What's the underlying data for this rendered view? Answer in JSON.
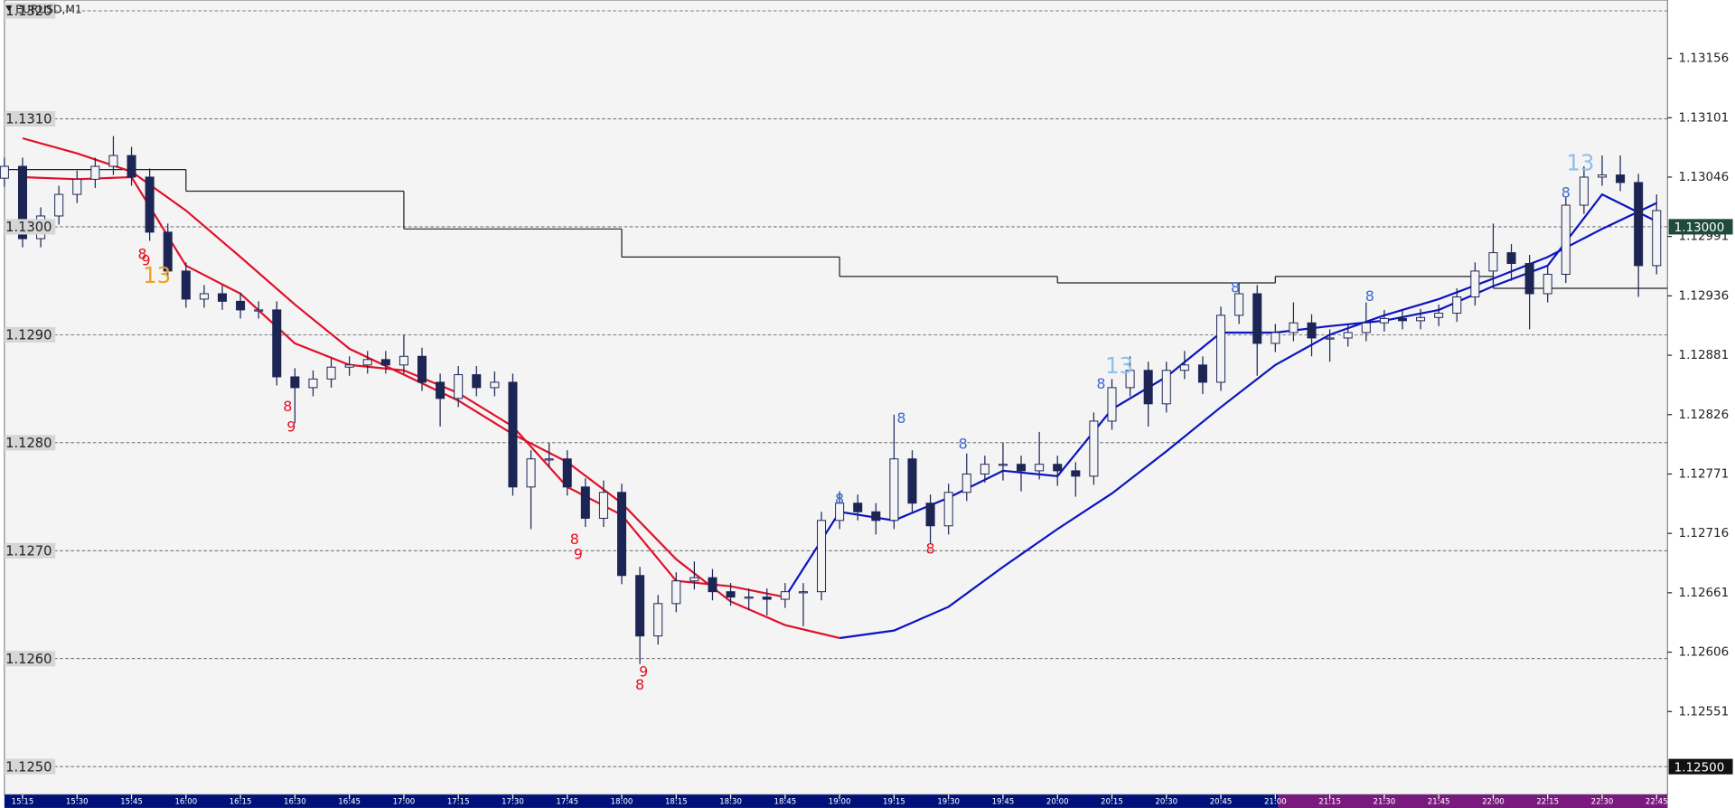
{
  "chart_data": {
    "type": "candlestick",
    "title": "EURUSD,M1",
    "candle_color": "#1c2554",
    "up_fill": "#f4f4f4",
    "grid": true,
    "xlim": [
      910,
      1368
    ],
    "ylim": [
      1.12474,
      1.1321
    ],
    "x": [
      910,
      915,
      920,
      925,
      930,
      935,
      940,
      945,
      950,
      955,
      960,
      965,
      970,
      975,
      980,
      985,
      990,
      995,
      1000,
      1005,
      1010,
      1015,
      1020,
      1025,
      1030,
      1035,
      1040,
      1045,
      1050,
      1055,
      1060,
      1065,
      1070,
      1075,
      1080,
      1085,
      1090,
      1095,
      1100,
      1105,
      1110,
      1115,
      1120,
      1125,
      1130,
      1135,
      1140,
      1145,
      1150,
      1155,
      1160,
      1165,
      1170,
      1175,
      1180,
      1185,
      1190,
      1195,
      1200,
      1205,
      1210,
      1215,
      1220,
      1225,
      1230,
      1235,
      1240,
      1245,
      1250,
      1255,
      1260,
      1265,
      1270,
      1275,
      1280,
      1285,
      1290,
      1295,
      1300,
      1305,
      1310,
      1315,
      1320,
      1325,
      1330,
      1335,
      1340,
      1345,
      1350,
      1355,
      1360,
      1365
    ],
    "open": [
      1.13045,
      1.13056,
      1.12989,
      1.1301,
      1.1303,
      1.13044,
      1.13056,
      1.13066,
      1.13046,
      1.12995,
      1.12959,
      1.12933,
      1.12938,
      1.12931,
      1.12923,
      1.12923,
      1.12861,
      1.12851,
      1.12859,
      1.1287,
      1.12872,
      1.12877,
      1.12872,
      1.1288,
      1.12856,
      1.12841,
      1.12863,
      1.12851,
      1.12856,
      1.12759,
      1.12785,
      1.12785,
      1.12759,
      1.1273,
      1.12754,
      1.12677,
      1.12621,
      1.12651,
      1.12672,
      1.12675,
      1.12662,
      1.12657,
      1.12657,
      1.12655,
      1.12662,
      1.12662,
      1.12728,
      1.12744,
      1.12736,
      1.12728,
      1.12785,
      1.12744,
      1.12723,
      1.12754,
      1.12771,
      1.1278,
      1.1278,
      1.12774,
      1.1278,
      1.12774,
      1.12769,
      1.1282,
      1.12851,
      1.12867,
      1.12836,
      1.12867,
      1.12872,
      1.12856,
      1.12918,
      1.12938,
      1.12892,
      1.12902,
      1.12911,
      1.12897,
      1.12897,
      1.12902,
      1.12911,
      1.12915,
      1.12913,
      1.12916,
      1.1292,
      1.12935,
      1.12959,
      1.12976,
      1.12966,
      1.12938,
      1.12956,
      1.1302,
      1.13046,
      1.13048,
      1.13041,
      1.12964
    ],
    "high": [
      1.13064,
      1.13064,
      1.13018,
      1.13038,
      1.13052,
      1.13064,
      1.13084,
      1.13074,
      1.13054,
      1.13003,
      1.12967,
      1.12946,
      1.12946,
      1.12939,
      1.12931,
      1.12931,
      1.12869,
      1.12867,
      1.12878,
      1.1288,
      1.12885,
      1.12885,
      1.129,
      1.12888,
      1.12864,
      1.12871,
      1.12871,
      1.12866,
      1.12864,
      1.12793,
      1.128,
      1.12793,
      1.12767,
      1.12765,
      1.12762,
      1.12685,
      1.12659,
      1.1268,
      1.1269,
      1.12683,
      1.1267,
      1.12665,
      1.12665,
      1.1267,
      1.1267,
      1.12736,
      1.12755,
      1.12752,
      1.12744,
      1.12826,
      1.12793,
      1.12752,
      1.12762,
      1.1279,
      1.12788,
      1.128,
      1.12788,
      1.1281,
      1.12788,
      1.12782,
      1.12828,
      1.12859,
      1.1288,
      1.12875,
      1.12875,
      1.12885,
      1.1288,
      1.12926,
      1.12948,
      1.12946,
      1.1291,
      1.1293,
      1.12919,
      1.12905,
      1.1291,
      1.1293,
      1.12923,
      1.12923,
      1.12924,
      1.12928,
      1.12943,
      1.12967,
      1.13003,
      1.12984,
      1.12974,
      1.12964,
      1.13028,
      1.13056,
      1.13066,
      1.13066,
      1.13049,
      1.1303
    ],
    "low": [
      1.13037,
      1.12981,
      1.12981,
      1.13002,
      1.13022,
      1.13036,
      1.13048,
      1.13038,
      1.12987,
      1.12951,
      1.12925,
      1.12925,
      1.12923,
      1.12915,
      1.12915,
      1.12853,
      1.12818,
      1.12843,
      1.12851,
      1.12862,
      1.12864,
      1.12864,
      1.12864,
      1.12848,
      1.12815,
      1.12833,
      1.12843,
      1.12843,
      1.12751,
      1.1272,
      1.12777,
      1.12751,
      1.12722,
      1.12722,
      1.12669,
      1.12595,
      1.12613,
      1.12643,
      1.12664,
      1.12654,
      1.12649,
      1.12645,
      1.1264,
      1.12647,
      1.1263,
      1.12654,
      1.1272,
      1.12728,
      1.12715,
      1.1272,
      1.12736,
      1.12706,
      1.12715,
      1.12746,
      1.12763,
      1.12765,
      1.12755,
      1.12766,
      1.1276,
      1.1275,
      1.12761,
      1.12812,
      1.12843,
      1.12815,
      1.12828,
      1.12859,
      1.12845,
      1.12848,
      1.1291,
      1.12862,
      1.12884,
      1.12894,
      1.1288,
      1.12875,
      1.12889,
      1.12894,
      1.12903,
      1.12905,
      1.12905,
      1.12908,
      1.12912,
      1.12927,
      1.12951,
      1.1295,
      1.12905,
      1.1293,
      1.12948,
      1.13012,
      1.13038,
      1.13033,
      1.12935,
      1.12956
    ],
    "close": [
      1.13056,
      1.12989,
      1.1301,
      1.1303,
      1.13044,
      1.13056,
      1.13066,
      1.13046,
      1.12995,
      1.12959,
      1.12933,
      1.12938,
      1.12931,
      1.12923,
      1.12923,
      1.12861,
      1.12851,
      1.12859,
      1.1287,
      1.12872,
      1.12877,
      1.12872,
      1.1288,
      1.12856,
      1.12841,
      1.12863,
      1.12851,
      1.12856,
      1.12759,
      1.12785,
      1.12785,
      1.12759,
      1.1273,
      1.12754,
      1.12677,
      1.12621,
      1.12651,
      1.12672,
      1.12675,
      1.12662,
      1.12657,
      1.12657,
      1.12655,
      1.12662,
      1.12662,
      1.12728,
      1.12744,
      1.12736,
      1.12728,
      1.12785,
      1.12744,
      1.12723,
      1.12754,
      1.12771,
      1.1278,
      1.1278,
      1.12774,
      1.1278,
      1.12774,
      1.12769,
      1.1282,
      1.12851,
      1.12867,
      1.12836,
      1.12867,
      1.12872,
      1.12856,
      1.12918,
      1.12938,
      1.12892,
      1.12902,
      1.12911,
      1.12897,
      1.12897,
      1.12902,
      1.12911,
      1.12915,
      1.12913,
      1.12916,
      1.1292,
      1.12935,
      1.12959,
      1.12976,
      1.12966,
      1.12938,
      1.12956,
      1.1302,
      1.13046,
      1.13048,
      1.13041,
      1.12964,
      1.13015
    ],
    "lines": [
      {
        "color": "#222222",
        "step": true,
        "x": [
          910,
          960,
          1020,
          1080,
          1140,
          1200,
          1260,
          1320
        ],
        "values": [
          1.13053,
          1.13033,
          1.12998,
          1.12972,
          1.12954,
          1.12948,
          1.12954,
          1.12943
        ]
      },
      {
        "color": "#e0102a",
        "x": [
          915,
          930,
          945,
          960,
          975,
          990,
          1005,
          1020,
          1035,
          1050,
          1065,
          1080,
          1095,
          1110,
          1125,
          1140
        ],
        "values": [
          1.13082,
          1.13068,
          1.13051,
          1.13015,
          1.12972,
          1.12928,
          1.12887,
          1.12863,
          1.12839,
          1.12808,
          1.12782,
          1.12744,
          1.12692,
          1.12653,
          1.12631,
          1.12619
        ]
      },
      {
        "color": "#0a14c0",
        "x": [
          1140,
          1155,
          1170,
          1185,
          1200,
          1215,
          1230,
          1245,
          1260,
          1275,
          1290,
          1305,
          1320,
          1335,
          1350,
          1365
        ],
        "values": [
          1.12619,
          1.12626,
          1.12648,
          1.12685,
          1.1272,
          1.12753,
          1.12792,
          1.12833,
          1.12872,
          1.129,
          1.12918,
          1.12933,
          1.12952,
          1.12972,
          1.12998,
          1.13022
        ]
      },
      {
        "color": "#e0102a",
        "x": [
          915,
          930,
          945,
          960,
          975,
          990,
          1005,
          1020,
          1035,
          1050,
          1065,
          1080,
          1095,
          1110,
          1125
        ],
        "values": [
          1.13046,
          1.13044,
          1.13046,
          1.12964,
          1.12938,
          1.12892,
          1.12872,
          1.12867,
          1.12846,
          1.12815,
          1.12759,
          1.12733,
          1.12672,
          1.12667,
          1.12657
        ]
      },
      {
        "color": "#0a14c0",
        "x": [
          1125,
          1140,
          1155,
          1170,
          1185,
          1200,
          1215,
          1230,
          1245,
          1260,
          1275,
          1290,
          1305,
          1320,
          1335,
          1350,
          1365
        ],
        "values": [
          1.12657,
          1.12736,
          1.12728,
          1.12749,
          1.12774,
          1.12769,
          1.12831,
          1.12861,
          1.12902,
          1.12902,
          1.12908,
          1.12913,
          1.12923,
          1.12945,
          1.12964,
          1.1303,
          1.13005
        ]
      }
    ],
    "annotations": [
      {
        "text": "8",
        "x": 948,
        "y": 1.12974,
        "color": "#e8101e"
      },
      {
        "text": "9",
        "x": 949,
        "y": 1.12968,
        "color": "#e8101e"
      },
      {
        "text": "13",
        "x": 952,
        "y": 1.12954,
        "color": "#f0a020"
      },
      {
        "text": "8",
        "x": 988,
        "y": 1.12833,
        "color": "#e8101e"
      },
      {
        "text": "9",
        "x": 989,
        "y": 1.12814,
        "color": "#e8101e"
      },
      {
        "text": "8",
        "x": 1067,
        "y": 1.1271,
        "color": "#e8101e"
      },
      {
        "text": "9",
        "x": 1068,
        "y": 1.12696,
        "color": "#e8101e"
      },
      {
        "text": "9",
        "x": 1086,
        "y": 1.12587,
        "color": "#e8101e"
      },
      {
        "text": "8",
        "x": 1085,
        "y": 1.12575,
        "color": "#e8101e"
      },
      {
        "text": "8",
        "x": 1165,
        "y": 1.12701,
        "color": "#e8101e"
      },
      {
        "text": "8",
        "x": 1140,
        "y": 1.12747,
        "color": "#3a6ad0"
      },
      {
        "text": "8",
        "x": 1157,
        "y": 1.12822,
        "color": "#3a6ad0"
      },
      {
        "text": "8",
        "x": 1174,
        "y": 1.12798,
        "color": "#3a6ad0"
      },
      {
        "text": "8",
        "x": 1212,
        "y": 1.12854,
        "color": "#3a6ad0"
      },
      {
        "text": "13",
        "x": 1217,
        "y": 1.1287,
        "color": "#8ec0ea"
      },
      {
        "text": "8",
        "x": 1249,
        "y": 1.12943,
        "color": "#3a6ad0"
      },
      {
        "text": "8",
        "x": 1286,
        "y": 1.12935,
        "color": "#3a6ad0"
      },
      {
        "text": "8",
        "x": 1340,
        "y": 1.13031,
        "color": "#3a6ad0"
      },
      {
        "text": "13",
        "x": 1344,
        "y": 1.13058,
        "color": "#8ec0ea"
      }
    ],
    "yticks": [
      {
        "value": 1.132,
        "label": "1.1320"
      },
      {
        "value": 1.131,
        "label": "1.1310"
      },
      {
        "value": 1.13,
        "label": "1.1300"
      },
      {
        "value": 1.129,
        "label": "1.1290"
      },
      {
        "value": 1.128,
        "label": "1.1280"
      },
      {
        "value": 1.127,
        "label": "1.1270"
      },
      {
        "value": 1.126,
        "label": "1.1260"
      },
      {
        "value": 1.125,
        "label": "1.1250"
      }
    ],
    "y2ticks": [
      1.13156,
      1.13101,
      1.13046,
      1.12991,
      1.12936,
      1.12881,
      1.12826,
      1.12771,
      1.12716,
      1.12661,
      1.12606,
      1.12551
    ],
    "price_labels": [
      {
        "value": 1.13,
        "label": "1.13000",
        "color": "#1f4a3c"
      },
      {
        "value": 1.125,
        "label": "1.12500",
        "color": "#111111"
      }
    ],
    "xticks": [
      {
        "value": 915,
        "label": "15:15"
      },
      {
        "value": 930,
        "label": "15:30"
      },
      {
        "value": 945,
        "label": "15:45"
      },
      {
        "value": 960,
        "label": "16:00"
      },
      {
        "value": 975,
        "label": "16:15"
      },
      {
        "value": 990,
        "label": "16:30"
      },
      {
        "value": 1005,
        "label": "16:45"
      },
      {
        "value": 1020,
        "label": "17:00"
      },
      {
        "value": 1035,
        "label": "17:15"
      },
      {
        "value": 1050,
        "label": "17:30"
      },
      {
        "value": 1065,
        "label": "17:45"
      },
      {
        "value": 1080,
        "label": "18:00"
      },
      {
        "value": 1095,
        "label": "18:15"
      },
      {
        "value": 1110,
        "label": "18:30"
      },
      {
        "value": 1125,
        "label": "18:45"
      },
      {
        "value": 1140,
        "label": "19:00"
      },
      {
        "value": 1155,
        "label": "19:15"
      },
      {
        "value": 1170,
        "label": "19:30"
      },
      {
        "value": 1185,
        "label": "19:45"
      },
      {
        "value": 1200,
        "label": "20:00"
      },
      {
        "value": 1215,
        "label": "20:15"
      },
      {
        "value": 1230,
        "label": "20:30"
      },
      {
        "value": 1245,
        "label": "20:45"
      },
      {
        "value": 1260,
        "label": "21:00"
      },
      {
        "value": 1275,
        "label": "21:15"
      },
      {
        "value": 1290,
        "label": "21:30"
      },
      {
        "value": 1305,
        "label": "21:45"
      },
      {
        "value": 1320,
        "label": "22:00"
      },
      {
        "value": 1335,
        "label": "22:15"
      },
      {
        "value": 1350,
        "label": "22:30"
      },
      {
        "value": 1365,
        "label": "22:45"
      }
    ]
  }
}
